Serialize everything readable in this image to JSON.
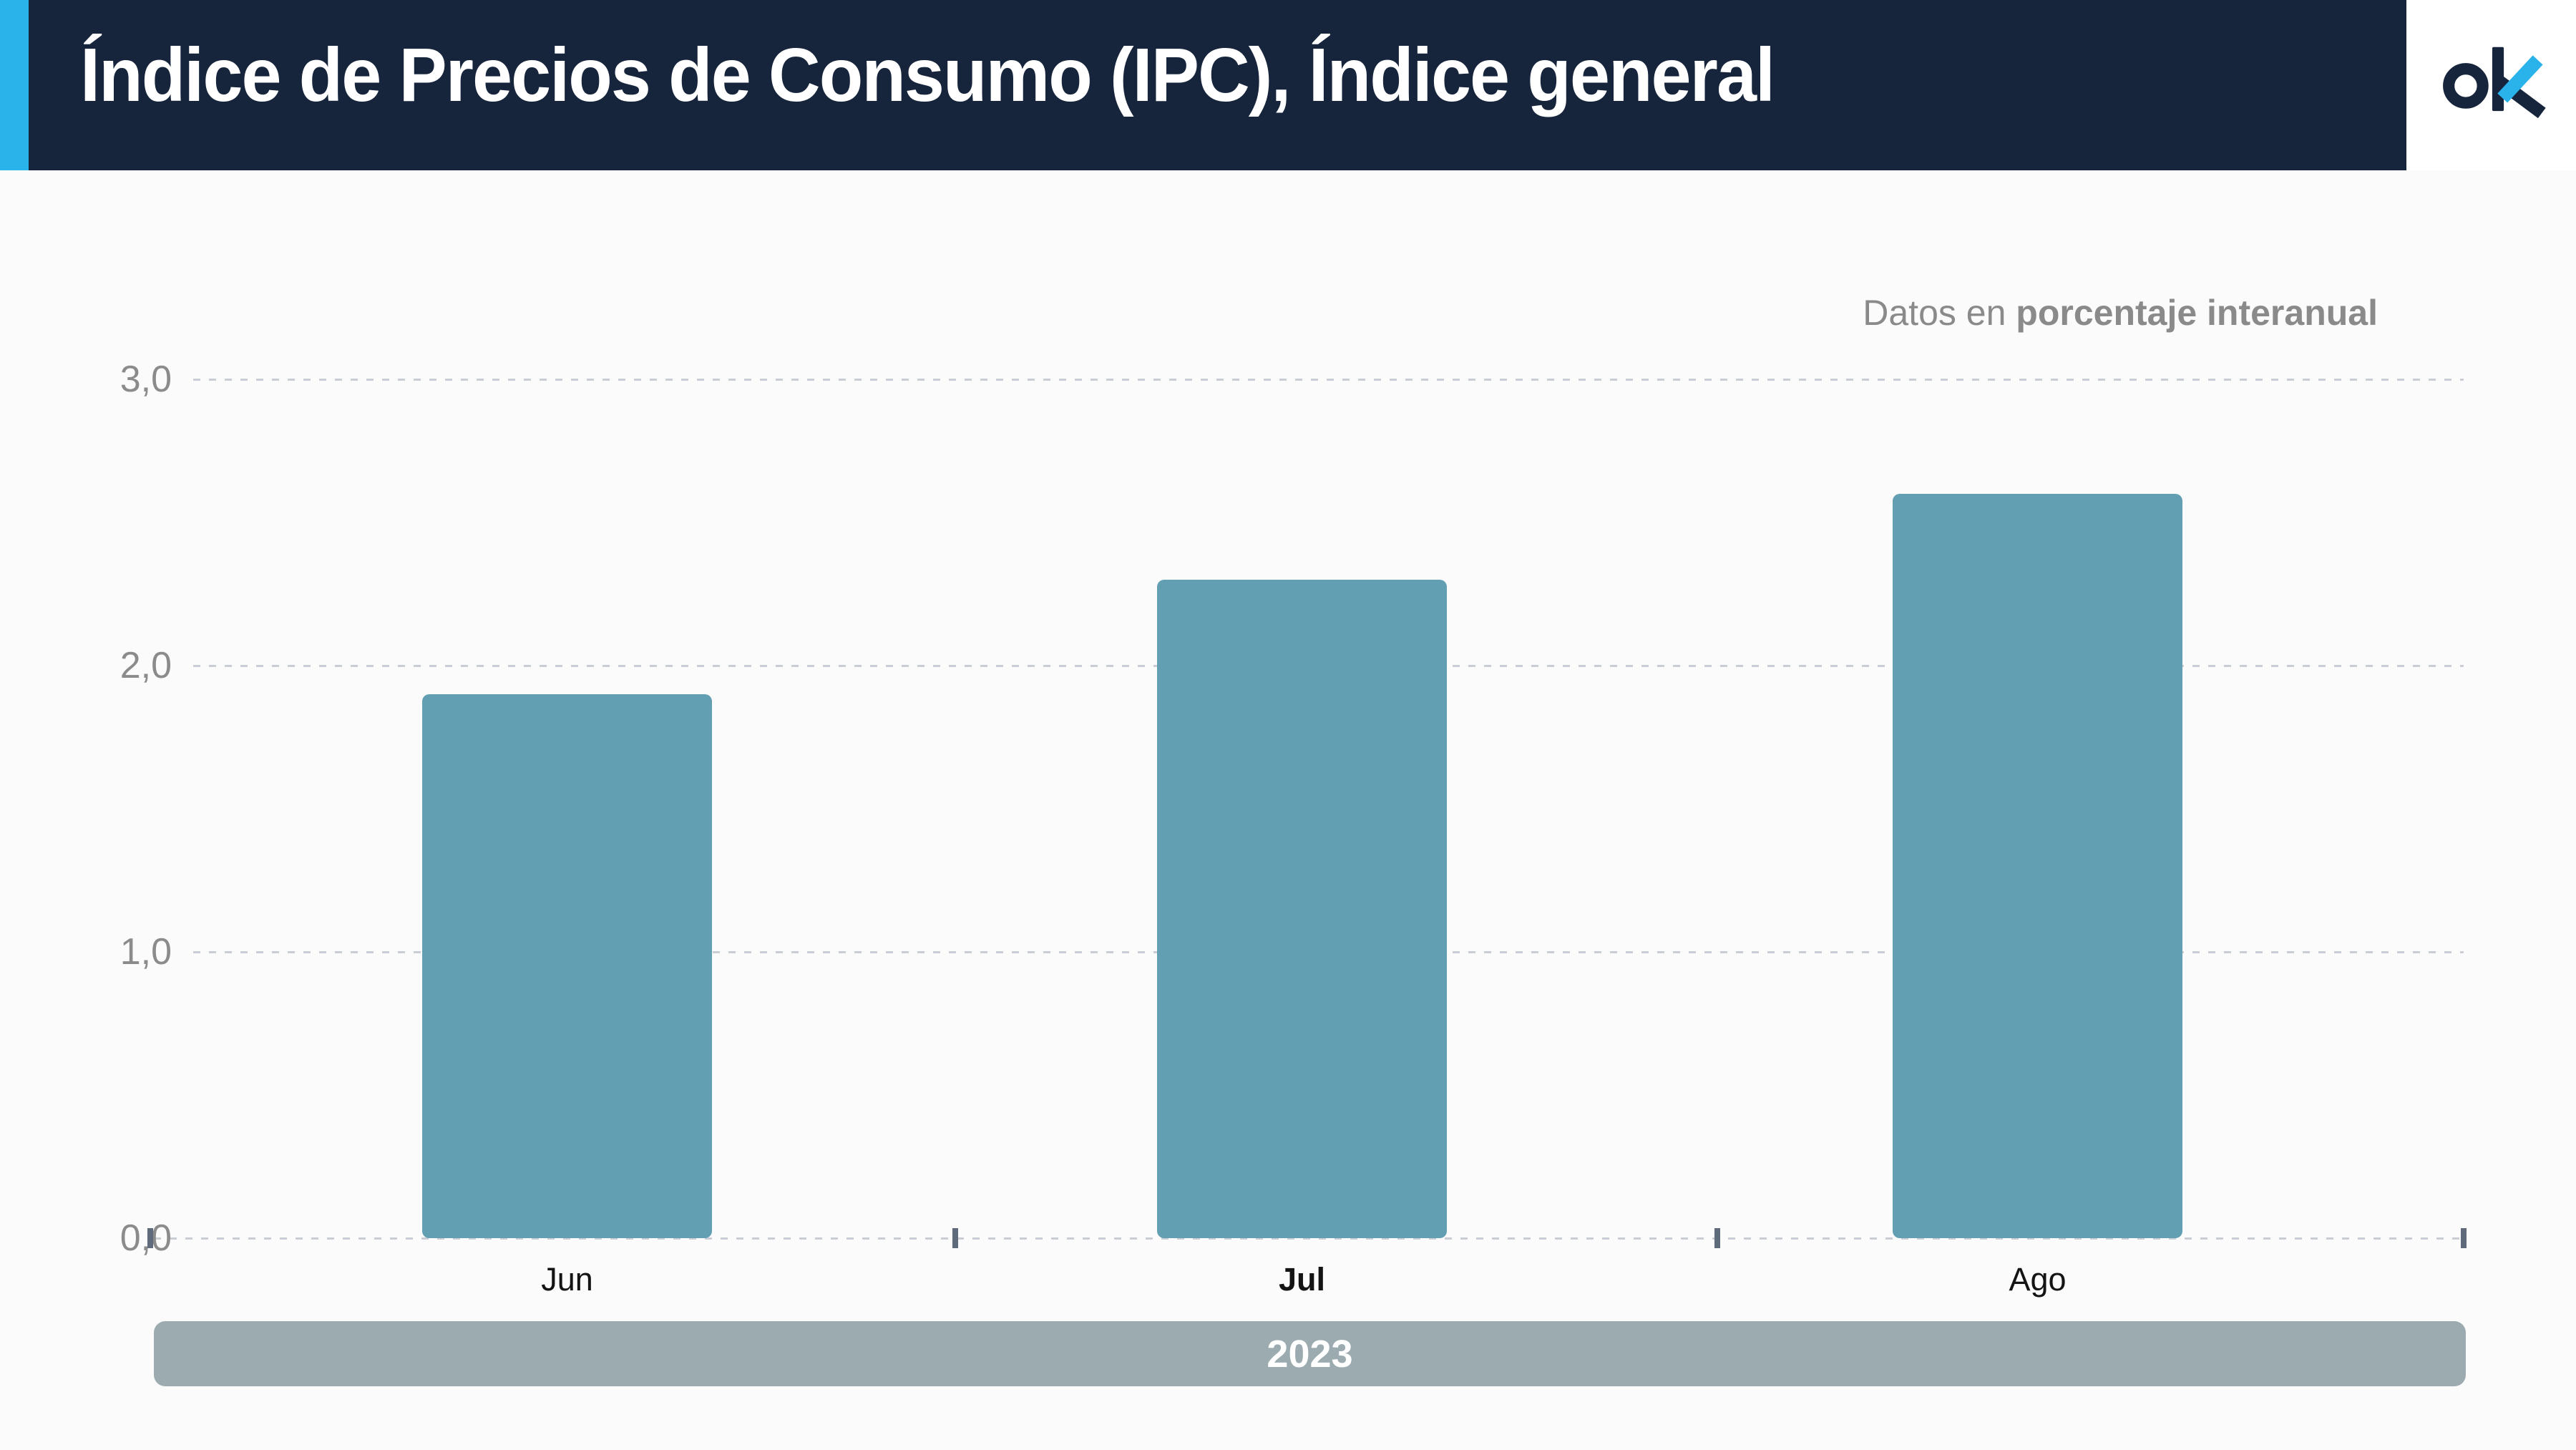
{
  "header": {
    "title": "Índice de Precios de Consumo (IPC), Índice general",
    "logo_text": "ok"
  },
  "subtitle": {
    "prefix": "Datos en",
    "bold": "porcentaje interanual"
  },
  "footer": {
    "year_label": "2023"
  },
  "colors": {
    "header_background": "#16253c",
    "accent_blue": "#2ab2ea",
    "bar_teal": "#629fb2",
    "year_band_gray": "#9cabb0",
    "grid_gray": "#c9cdd5",
    "axis_tick": "#5f6b7a",
    "label_gray": "#8b8b8b",
    "title_white": "#ffffff"
  },
  "chart_data": {
    "type": "bar",
    "title": "Índice de Precios de Consumo (IPC), Índice general",
    "subtitle": "Datos en porcentaje interanual",
    "categories": [
      "Jun",
      "Jul",
      "Ago"
    ],
    "values": [
      1.9,
      2.3,
      2.6
    ],
    "period": "2023",
    "highlighted_category": "Jul",
    "ylim": [
      0,
      3.0
    ],
    "y_ticks": [
      {
        "label": "3,0",
        "value": 3.0
      },
      {
        "label": "2,0",
        "value": 2.0
      },
      {
        "label": "1,0",
        "value": 1.0
      },
      {
        "label": "0,0",
        "value": 0.0
      }
    ],
    "grid": "horizontal-dashed",
    "legend": "none",
    "xlabel": "",
    "ylabel": ""
  }
}
